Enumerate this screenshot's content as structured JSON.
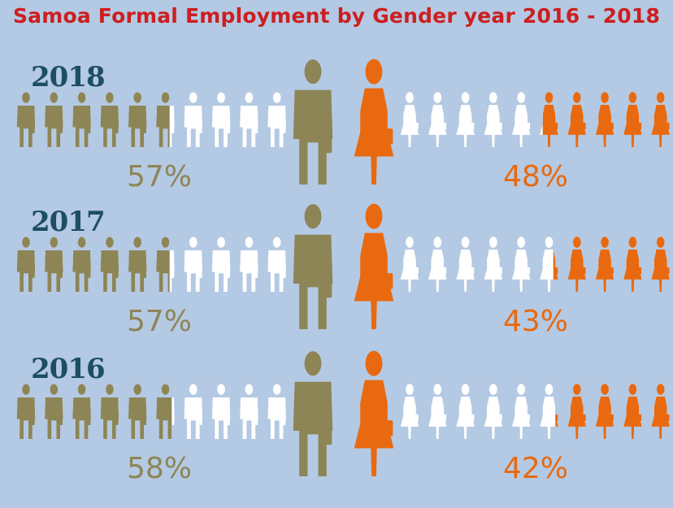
{
  "title": "Samoa Formal Employment by Gender year 2016 - 2018",
  "colors": {
    "background": "#b4c9e3",
    "men": "#8d8556",
    "women": "#e8690f",
    "empty": "#ffffff",
    "title": "#cc1f1f",
    "year": "#1d4e63"
  },
  "chart_data": {
    "type": "pictogram",
    "title": "Samoa Formal Employment by Gender year 2016 - 2018",
    "icons_per_gender": 10,
    "series": [
      {
        "name": "Men",
        "color": "#8d8556",
        "icon": "man-icon"
      },
      {
        "name": "Women",
        "color": "#e8690f",
        "icon": "woman-icon"
      }
    ],
    "rows": [
      {
        "year": "2018",
        "men_pct_label": "57%",
        "women_pct_label": "48%",
        "men": 57,
        "women": 48
      },
      {
        "year": "2017",
        "men_pct_label": "57%",
        "women_pct_label": "43%",
        "men": 57,
        "women": 43
      },
      {
        "year": "2016",
        "men_pct_label": "58%",
        "women_pct_label": "42%",
        "men": 58,
        "women": 42
      }
    ]
  }
}
